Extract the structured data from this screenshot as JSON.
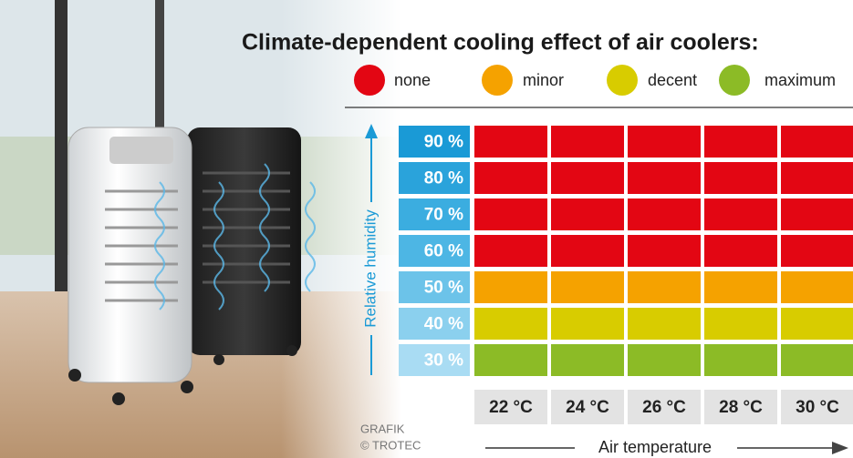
{
  "title": "Climate-dependent cooling effect of air coolers:",
  "legend": [
    {
      "label": "none",
      "color": "#e30613"
    },
    {
      "label": "minor",
      "color": "#f5a200"
    },
    {
      "label": "decent",
      "color": "#d8cc00"
    },
    {
      "label": "maximum",
      "color": "#8cbb26"
    }
  ],
  "y_axis_label": "Relative humidity",
  "x_axis_label": "Air temperature",
  "humidity": [
    "90 %",
    "80 %",
    "70 %",
    "60 %",
    "50 %",
    "40 %",
    "30 %"
  ],
  "temperature": [
    "22 °C",
    "24 °C",
    "26 °C",
    "28 °C",
    "30 °C"
  ],
  "grid": [
    [
      "none",
      "none",
      "none",
      "none",
      "none"
    ],
    [
      "none",
      "none",
      "none",
      "none",
      "none"
    ],
    [
      "none",
      "none",
      "none",
      "none",
      "none"
    ],
    [
      "none",
      "none",
      "none",
      "none",
      "none"
    ],
    [
      "minor",
      "minor",
      "minor",
      "minor",
      "minor"
    ],
    [
      "decent",
      "decent",
      "decent",
      "decent",
      "decent"
    ],
    [
      "maximum",
      "maximum",
      "maximum",
      "maximum",
      "maximum"
    ]
  ],
  "credit": [
    "GRAFIK",
    "© TROTEC"
  ]
}
